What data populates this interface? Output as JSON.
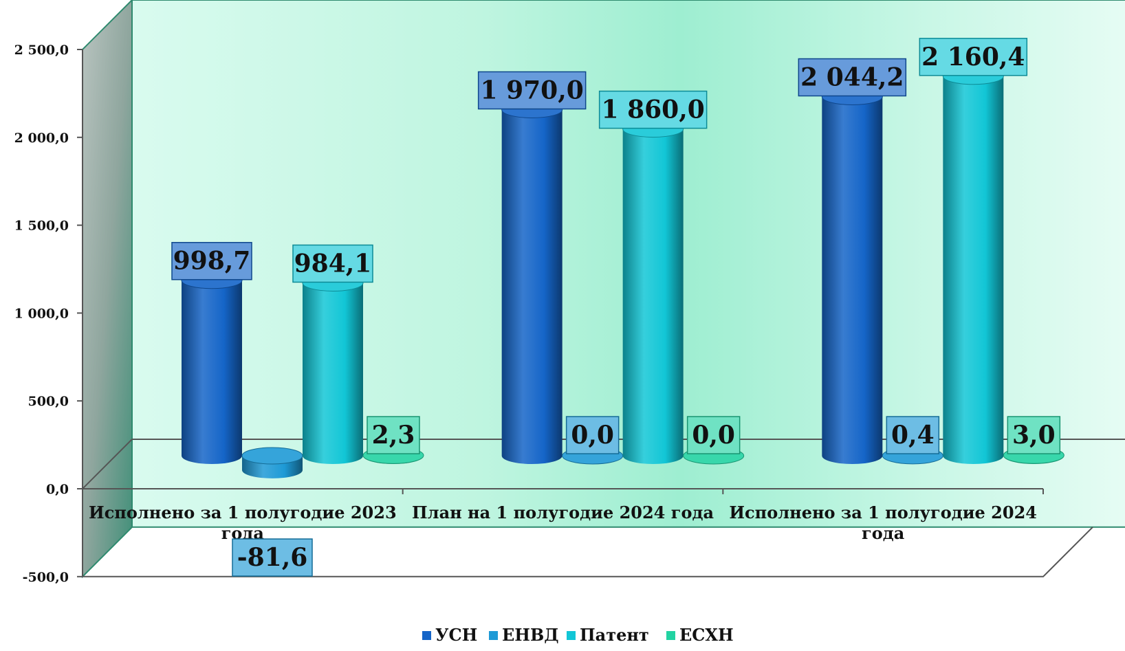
{
  "chart_data": {
    "type": "bar",
    "title": "",
    "xlabel": "",
    "ylabel": "",
    "ylim": [
      -500,
      2500
    ],
    "yticks": [
      -500,
      0,
      500,
      1000,
      1500,
      2000,
      2500
    ],
    "ytick_labels": [
      "-500,0",
      "0,0",
      "500,0",
      "1 000,0",
      "1 500,0",
      "2 000,0",
      "2 500,0"
    ],
    "categories": [
      [
        "Исполнено за 1 полугодие 2023",
        "года"
      ],
      [
        "План на 1 полугодие 2024 года"
      ],
      [
        "Исполнено за 1 полугодие 2024",
        "года"
      ]
    ],
    "series": [
      {
        "name": "УСН",
        "color": "#1565c8",
        "values": [
          998.7,
          1970.0,
          2044.2
        ],
        "labels": [
          "998,7",
          "1 970,0",
          "2 044,2"
        ]
      },
      {
        "name": "ЕНВД",
        "color": "#1e9ad6",
        "values": [
          -81.6,
          0.0,
          0.4
        ],
        "labels": [
          "-81,6",
          "0,0",
          "0,4"
        ]
      },
      {
        "name": "Патент",
        "color": "#12c6d6",
        "values": [
          984.1,
          1860.0,
          2160.4
        ],
        "labels": [
          "984,1",
          "1 860,0",
          "2 160,4"
        ]
      },
      {
        "name": "ЕСХН",
        "color": "#22d3a2",
        "values": [
          2.3,
          0.0,
          3.0
        ],
        "labels": [
          "2,3",
          "0,0",
          "3,0"
        ]
      }
    ],
    "grid": false,
    "legend": "bottom",
    "style": "3d-cylinder"
  }
}
